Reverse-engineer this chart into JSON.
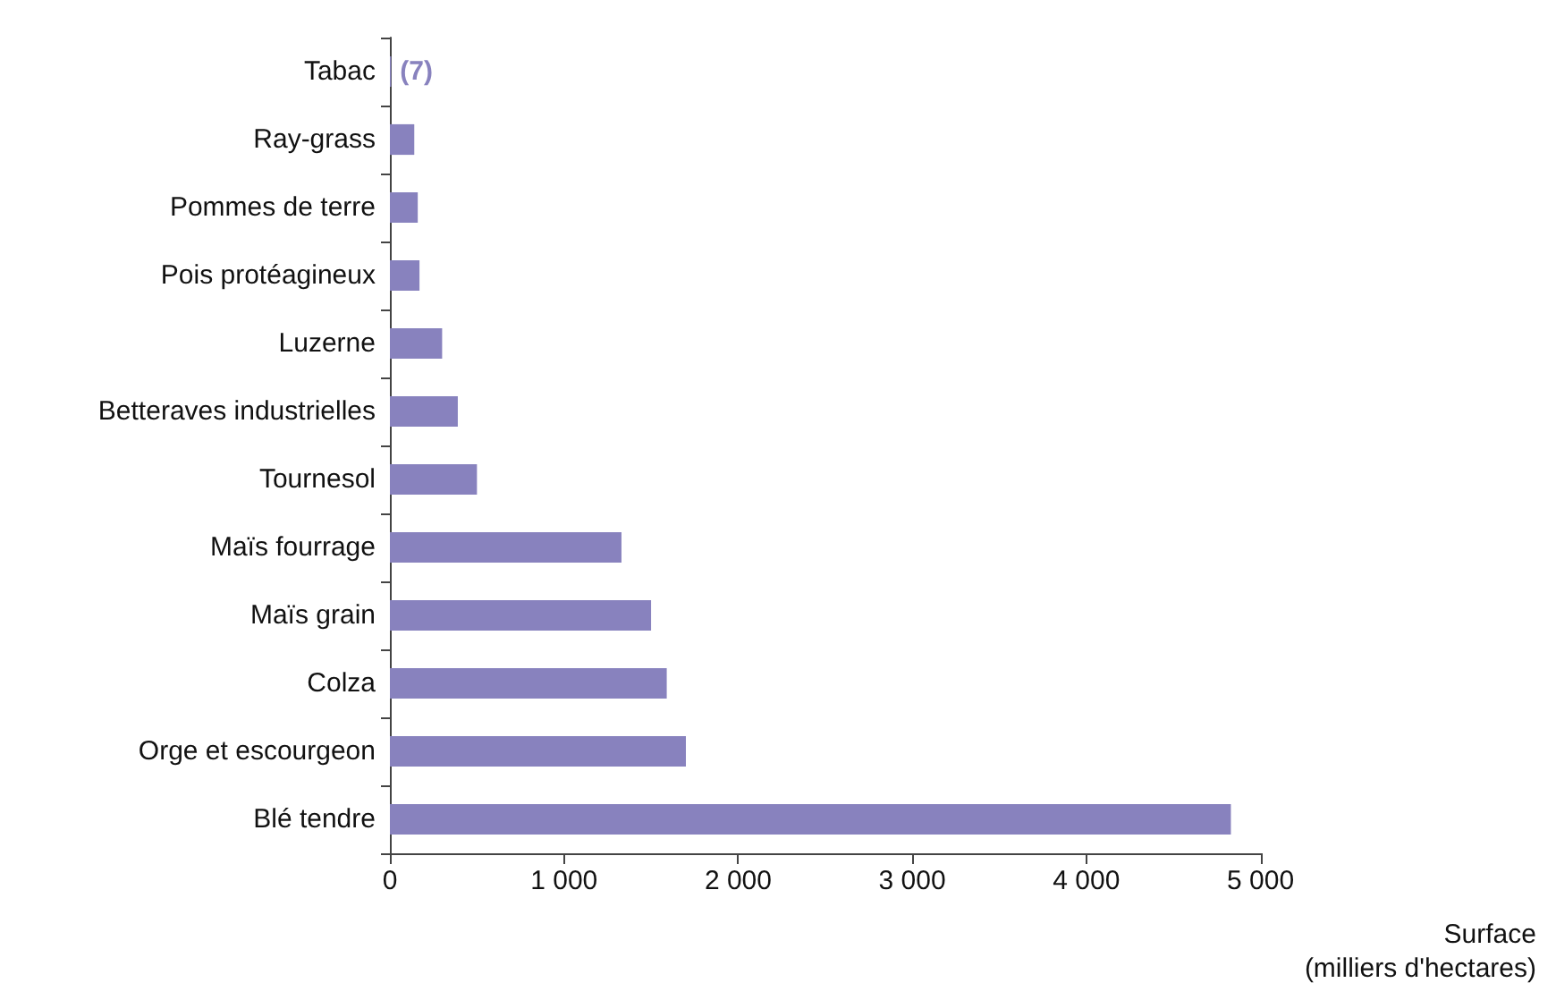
{
  "chart_data": {
    "type": "bar",
    "orientation": "horizontal",
    "xlabel": "Surface\n(milliers d'hectares)",
    "categories": [
      "Tabac",
      "Ray-grass",
      "Pommes de terre",
      "Pois protéagineux",
      "Luzerne",
      "Betteraves industrielles",
      "Tournesol",
      "Maïs fourrage",
      "Maïs grain",
      "Colza",
      "Orge et escourgeon",
      "Blé tendre"
    ],
    "values": [
      7,
      140,
      160,
      170,
      300,
      390,
      500,
      1330,
      1500,
      1590,
      1700,
      4830
    ],
    "value_labels": [
      "(7)",
      null,
      null,
      null,
      null,
      null,
      null,
      null,
      null,
      null,
      null,
      null
    ],
    "color": "#8882be",
    "xlim": [
      0,
      5000
    ],
    "xticks": [
      0,
      {
        "value": 1000,
        "label": "1 000"
      },
      {
        "value": 2000,
        "label": "2 000"
      },
      {
        "value": 3000,
        "label": "3 000"
      },
      {
        "value": 4000,
        "label": "4 000"
      },
      {
        "value": 5000,
        "label": "5 000"
      }
    ],
    "grid": false
  }
}
